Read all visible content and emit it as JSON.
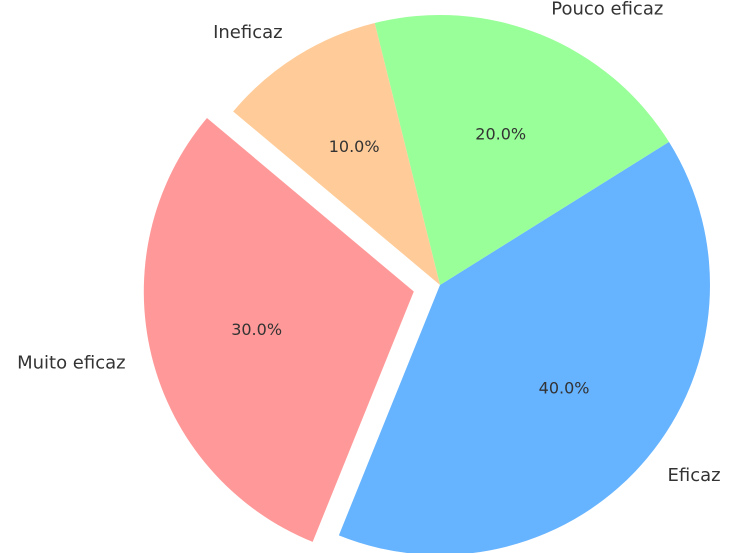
{
  "chart_data": {
    "type": "pie",
    "categories": [
      "Muito eficaz",
      "Eficaz",
      "Pouco eficaz",
      "Ineficaz"
    ],
    "values": [
      30,
      40,
      20,
      10
    ],
    "value_labels": [
      "30.0%",
      "40.0%",
      "20.0%",
      "10.0%"
    ],
    "colors": [
      "#ff9999",
      "#66b3ff",
      "#99ff99",
      "#ffcc99"
    ]
  }
}
